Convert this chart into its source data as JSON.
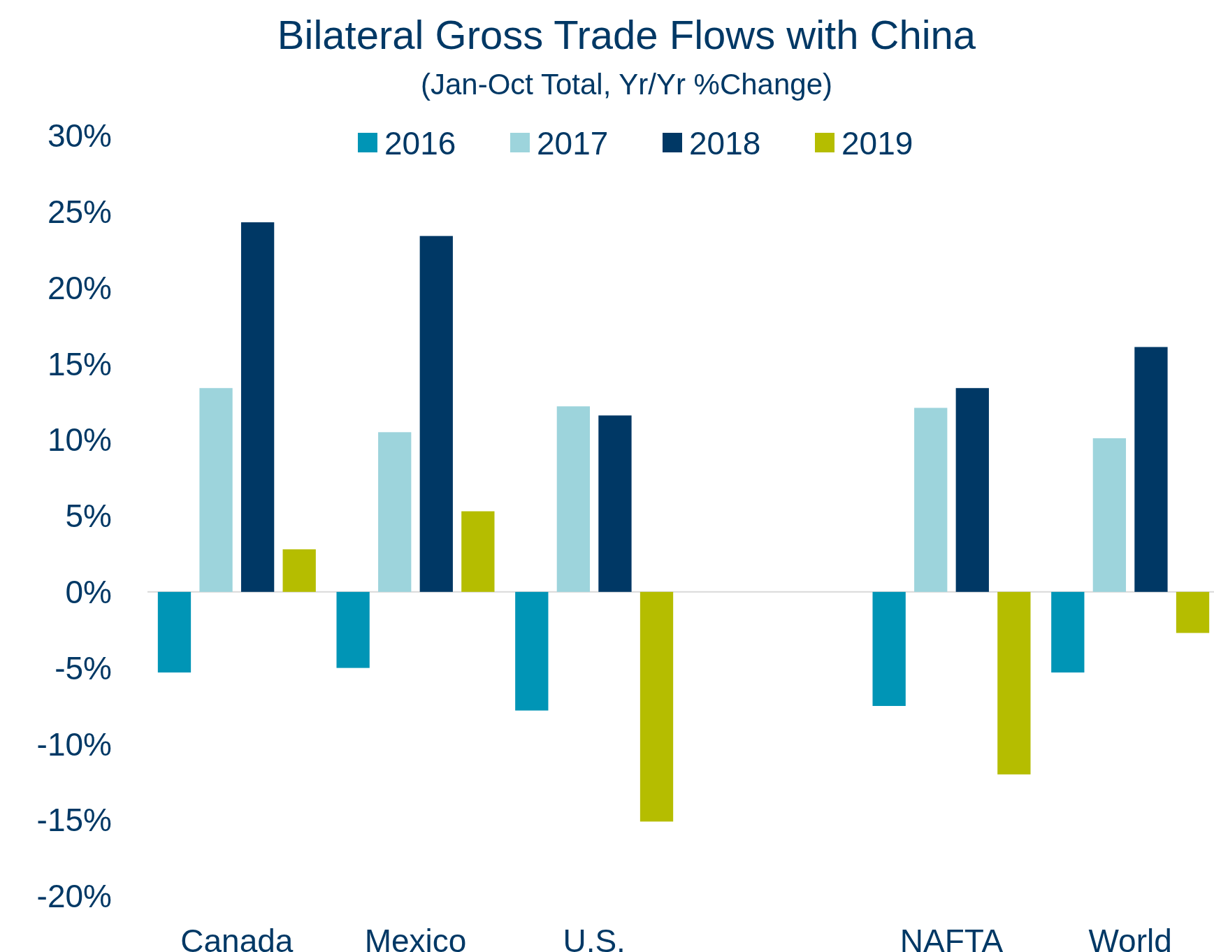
{
  "chart_data": {
    "type": "bar",
    "title": "Bilateral Gross Trade Flows with China",
    "subtitle": "(Jan-Oct Total, Yr/Yr %Change)",
    "categories": [
      "Canada",
      "Mexico",
      "U.S.",
      null,
      "NAFTA",
      "World"
    ],
    "series": [
      {
        "name": "2016",
        "color": "#0095b6",
        "values": [
          -5.3,
          -5.0,
          -7.8,
          null,
          -7.5,
          -5.3
        ]
      },
      {
        "name": "2017",
        "color": "#9dd4dc",
        "values": [
          13.4,
          10.5,
          12.2,
          null,
          12.1,
          10.1
        ]
      },
      {
        "name": "2018",
        "color": "#003865",
        "values": [
          24.3,
          23.4,
          11.6,
          null,
          13.4,
          16.1
        ]
      },
      {
        "name": "2019",
        "color": "#b5bd00",
        "values": [
          2.8,
          5.3,
          -15.1,
          null,
          -12.0,
          -2.7
        ]
      }
    ],
    "ylim": [
      -20,
      30
    ],
    "yticks": [
      {
        "value": -20,
        "label": "-20%"
      },
      {
        "value": -15,
        "label": "-15%"
      },
      {
        "value": -10,
        "label": "-10%"
      },
      {
        "value": -5,
        "label": "-5%"
      },
      {
        "value": 0,
        "label": "0%"
      },
      {
        "value": 5,
        "label": "5%"
      },
      {
        "value": 10,
        "label": "10%"
      },
      {
        "value": 15,
        "label": "15%"
      },
      {
        "value": 20,
        "label": "20%"
      },
      {
        "value": 25,
        "label": "25%"
      },
      {
        "value": 30,
        "label": "30%"
      }
    ],
    "legend": "top"
  }
}
